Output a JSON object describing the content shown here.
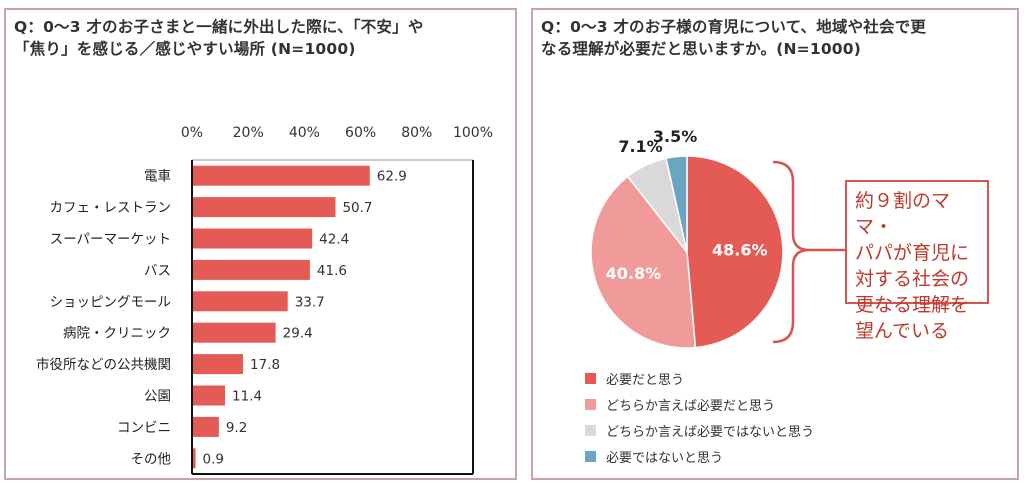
{
  "colors": {
    "bar": "#e45a55",
    "border": "#c9a3a6",
    "pie": [
      "#e45a55",
      "#f19a9a",
      "#d9d9d9",
      "#6aa6c3"
    ],
    "callout": "#d9534f",
    "callout_text": "#c0392b"
  },
  "left": {
    "title_line1": "Q：0〜3 才のお子さまと一緒に外出した際に、「不安」や",
    "title_line2": "「焦り」を感じる／感じやすい場所 (N=1000)"
  },
  "right": {
    "title_line1": "Q：0〜3 才のお子様の育児について、地域や社会で更",
    "title_line2": "なる理解が必要だと思いますか。(N=1000)",
    "callout_lines": [
      "約９割のママ・",
      "パパが育児に",
      "対する社会の",
      "更なる理解を",
      "望んでいる"
    ]
  },
  "chart_data": [
    {
      "type": "bar",
      "orientation": "horizontal",
      "title": "Q：0〜3 才のお子さまと一緒に外出した際に、「不安」や「焦り」を感じる／感じやすい場所 (N=1000)",
      "categories": [
        "電車",
        "カフェ・レストラン",
        "スーパーマーケット",
        "バス",
        "ショッピングモール",
        "病院・クリニック",
        "市役所などの公共機関",
        "公園",
        "コンビニ",
        "その他"
      ],
      "values": [
        62.9,
        50.7,
        42.4,
        41.6,
        33.7,
        29.4,
        17.8,
        11.4,
        9.2,
        0.9
      ],
      "value_labels": [
        "62.9",
        "50.7",
        "42.4",
        "41.6",
        "33.7",
        "29.4",
        "17.8",
        "11.4",
        "9.2",
        "0.9"
      ],
      "xlim": [
        0,
        100
      ],
      "ticks": [
        "0%",
        "20%",
        "40%",
        "60%",
        "80%",
        "100%"
      ],
      "tick_values": [
        0,
        20,
        40,
        60,
        80,
        100
      ],
      "grid": false
    },
    {
      "type": "pie",
      "title": "Q：0〜3 才のお子様の育児について、地域や社会で更なる理解が必要だと思いますか。(N=1000)",
      "labels": [
        "必要だと思う",
        "どちらか言えば必要だと思う",
        "どちらか言えば必要ではないと思う",
        "必要ではないと思う"
      ],
      "values": [
        48.6,
        40.8,
        7.1,
        3.5
      ],
      "value_labels": [
        "48.6%",
        "40.8%",
        "7.1%",
        "3.5%"
      ],
      "legend_position": "bottom-left"
    }
  ]
}
